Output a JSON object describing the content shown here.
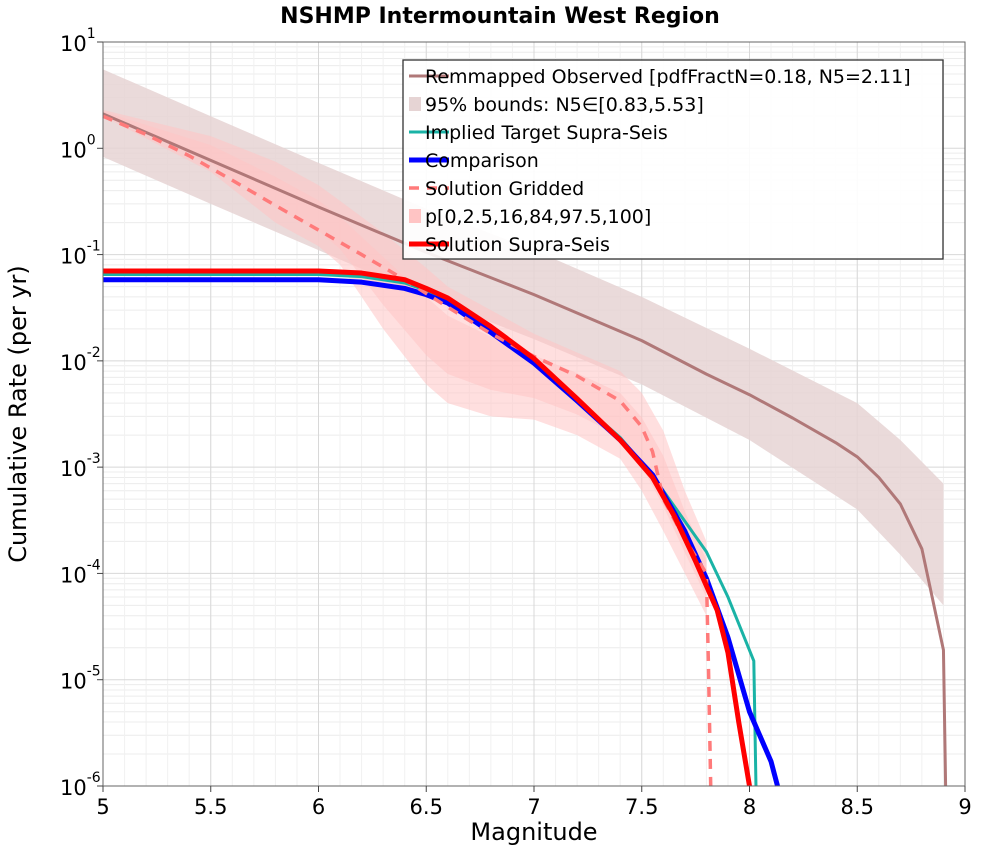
{
  "chart_data": {
    "type": "line",
    "title": "NSHMP Intermountain West Region",
    "xlabel": "Magnitude",
    "ylabel": "Cumulative Rate (per yr)",
    "xlim": [
      5,
      9
    ],
    "ylim": [
      1e-06,
      10
    ],
    "yscale": "log",
    "grid": true,
    "legend_position": "top-right",
    "xticks": [
      "5",
      "5.5",
      "6",
      "6.5",
      "7",
      "7.5",
      "8",
      "8.5",
      "9"
    ],
    "yticks": [
      {
        "base": "10",
        "exp": "-6"
      },
      {
        "base": "10",
        "exp": "-5"
      },
      {
        "base": "10",
        "exp": "-4"
      },
      {
        "base": "10",
        "exp": "-3"
      },
      {
        "base": "10",
        "exp": "-2"
      },
      {
        "base": "10",
        "exp": "-1"
      },
      {
        "base": "10",
        "exp": "0"
      },
      {
        "base": "10",
        "exp": "1"
      }
    ],
    "colors": {
      "observed": "#b07878",
      "observed_band": "#e6d4d4",
      "target": "#1ab3a6",
      "comparison": "#0000ff",
      "gridded": "#ff7a7a",
      "percentile_band": "#ffc4c4",
      "supra": "#ff0000"
    },
    "legend": [
      "Remmapped Observed [pdfFractN=0.18, N5=2.11]",
      "95% bounds: N5∈[0.83,5.53]",
      "Implied Target Supra-Seis",
      "Comparison",
      "Solution Gridded",
      "p[0,2.5,16,84,97.5,100]",
      "Solution Supra-Seis"
    ],
    "series": [
      {
        "name": "Remmapped Observed [pdfFractN=0.18, N5=2.11]",
        "x": [
          5.0,
          5.5,
          6.0,
          6.5,
          7.0,
          7.5,
          7.8,
          8.0,
          8.2,
          8.4,
          8.5,
          8.6,
          8.7,
          8.8,
          8.9,
          8.91
        ],
        "y": [
          2.11,
          0.77,
          0.28,
          0.105,
          0.042,
          0.0155,
          0.0075,
          0.0048,
          0.0029,
          0.0017,
          0.00125,
          0.0008,
          0.00045,
          0.00017,
          1.9e-05,
          1e-06
        ]
      },
      {
        "name": "95% bounds: N5∈[0.83,5.53]",
        "x": [
          5.0,
          5.5,
          6.0,
          6.5,
          7.0,
          7.5,
          8.0,
          8.5,
          8.7,
          8.9
        ],
        "lower": [
          0.83,
          0.3,
          0.11,
          0.04,
          0.016,
          0.006,
          0.0018,
          0.0004,
          0.00015,
          5e-05
        ],
        "upper": [
          5.53,
          2.0,
          0.73,
          0.27,
          0.11,
          0.04,
          0.013,
          0.004,
          0.0018,
          0.0007
        ]
      },
      {
        "name": "Implied Target Supra-Seis",
        "x": [
          5.0,
          5.5,
          6.0,
          6.2,
          6.4,
          6.5,
          6.6,
          6.8,
          7.0,
          7.2,
          7.4,
          7.5,
          7.6,
          7.7,
          7.8,
          7.9,
          8.02,
          8.03
        ],
        "y": [
          0.065,
          0.065,
          0.065,
          0.062,
          0.054,
          0.046,
          0.037,
          0.019,
          0.0095,
          0.0043,
          0.0019,
          0.0011,
          0.0006,
          0.00031,
          0.00016,
          6e-05,
          1.5e-05,
          1e-06
        ]
      },
      {
        "name": "Comparison",
        "x": [
          5.0,
          5.5,
          6.0,
          6.2,
          6.4,
          6.5,
          6.6,
          6.8,
          7.0,
          7.2,
          7.4,
          7.55,
          7.7,
          7.8,
          7.9,
          8.0,
          8.1,
          8.13
        ],
        "y": [
          0.058,
          0.058,
          0.058,
          0.055,
          0.048,
          0.042,
          0.035,
          0.0185,
          0.0095,
          0.0042,
          0.0018,
          0.00085,
          0.00025,
          9e-05,
          2.5e-05,
          5e-06,
          1.7e-06,
          1e-06
        ]
      },
      {
        "name": "Solution Gridded",
        "x": [
          5.0,
          5.2,
          5.4,
          5.6,
          5.8,
          6.0,
          6.2,
          6.4,
          6.6,
          6.8,
          7.0,
          7.2,
          7.4,
          7.5,
          7.55,
          7.6,
          7.7,
          7.8,
          7.81,
          7.82
        ],
        "y": [
          2.0,
          1.35,
          0.85,
          0.5,
          0.29,
          0.17,
          0.1,
          0.058,
          0.032,
          0.018,
          0.011,
          0.0072,
          0.0042,
          0.0024,
          0.0014,
          0.0005,
          0.00021,
          0.0001,
          1.2e-05,
          1e-06
        ]
      },
      {
        "name": "p[0,2.5,16,84,97.5,100]",
        "x": [
          5.0,
          5.5,
          5.8,
          6.0,
          6.1,
          6.3,
          6.5,
          6.6,
          6.8,
          7.0,
          7.2,
          7.4,
          7.5,
          7.6,
          7.7,
          7.8
        ],
        "lower": [
          2.0,
          0.6,
          0.2,
          0.12,
          0.08,
          0.02,
          0.006,
          0.004,
          0.003,
          0.0028,
          0.002,
          0.0012,
          0.0006,
          0.00025,
          0.0001,
          4e-05
        ],
        "upper": [
          2.3,
          1.3,
          0.75,
          0.45,
          0.32,
          0.16,
          0.075,
          0.05,
          0.03,
          0.018,
          0.012,
          0.008,
          0.005,
          0.0022,
          0.0006,
          0.0002
        ]
      },
      {
        "name": "Solution Supra-Seis",
        "x": [
          5.0,
          5.5,
          6.0,
          6.2,
          6.4,
          6.5,
          6.6,
          6.8,
          7.0,
          7.2,
          7.4,
          7.55,
          7.65,
          7.75,
          7.85,
          7.9,
          7.95,
          8.0
        ],
        "y": [
          0.07,
          0.07,
          0.07,
          0.067,
          0.058,
          0.048,
          0.039,
          0.021,
          0.0105,
          0.0044,
          0.0018,
          0.0008,
          0.00035,
          0.00013,
          4.5e-05,
          1.8e-05,
          4e-06,
          1e-06
        ]
      }
    ]
  }
}
